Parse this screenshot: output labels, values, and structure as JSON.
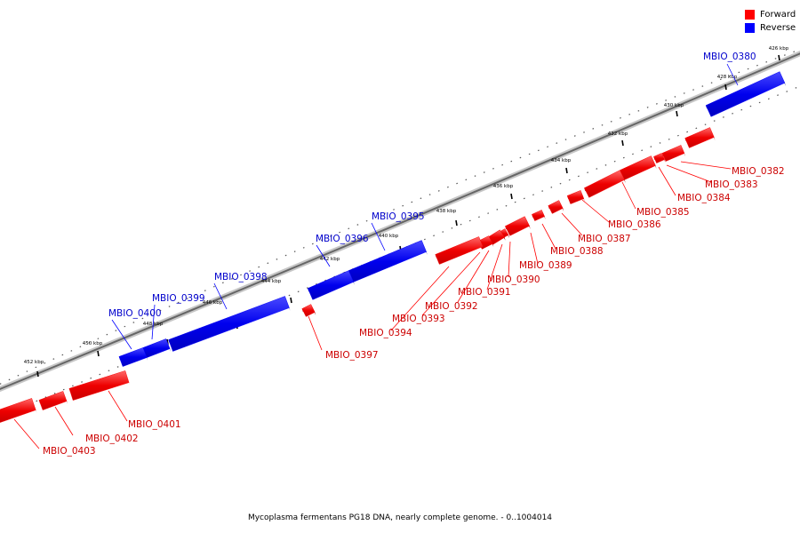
{
  "legend": {
    "forward": {
      "label": "Forward",
      "color": "#ff0000"
    },
    "reverse": {
      "label": "Reverse",
      "color": "#0000ff"
    }
  },
  "caption": "Mycoplasma fermentans PG18 DNA, nearly complete genome. - 0..1004014",
  "ticks": [
    "426 kbp",
    "428 kbp",
    "430 kbp",
    "432 kbp",
    "434 kbp",
    "436 kbp",
    "438 kbp",
    "440 kbp",
    "442 kbp",
    "444 kbp",
    "446 kbp",
    "448 kbp",
    "450 kbp",
    "452 kbp"
  ],
  "genes": [
    {
      "name": "MBIO_0380",
      "strand": "reverse"
    },
    {
      "name": "MBIO_0382",
      "strand": "forward"
    },
    {
      "name": "MBIO_0383",
      "strand": "forward"
    },
    {
      "name": "MBIO_0384",
      "strand": "forward"
    },
    {
      "name": "MBIO_0385",
      "strand": "forward"
    },
    {
      "name": "MBIO_0386",
      "strand": "forward"
    },
    {
      "name": "MBIO_0387",
      "strand": "forward"
    },
    {
      "name": "MBIO_0388",
      "strand": "forward"
    },
    {
      "name": "MBIO_0389",
      "strand": "forward"
    },
    {
      "name": "MBIO_0390",
      "strand": "forward"
    },
    {
      "name": "MBIO_0391",
      "strand": "forward"
    },
    {
      "name": "MBIO_0392",
      "strand": "forward"
    },
    {
      "name": "MBIO_0393",
      "strand": "forward"
    },
    {
      "name": "MBIO_0394",
      "strand": "forward"
    },
    {
      "name": "MBIO_0395",
      "strand": "reverse"
    },
    {
      "name": "MBIO_0396",
      "strand": "reverse"
    },
    {
      "name": "MBIO_0397",
      "strand": "forward"
    },
    {
      "name": "MBIO_0398",
      "strand": "reverse"
    },
    {
      "name": "MBIO_0399",
      "strand": "reverse"
    },
    {
      "name": "MBIO_0400",
      "strand": "reverse"
    },
    {
      "name": "MBIO_0401",
      "strand": "forward"
    },
    {
      "name": "MBIO_0402",
      "strand": "forward"
    },
    {
      "name": "MBIO_0403",
      "strand": "forward"
    }
  ]
}
